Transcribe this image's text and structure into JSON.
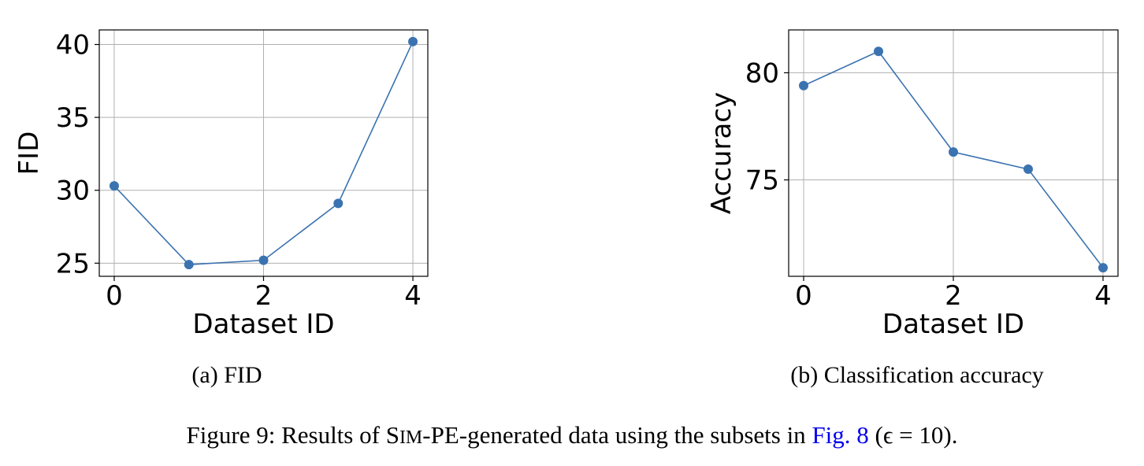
{
  "chart_data": [
    {
      "type": "line",
      "x": [
        0,
        1,
        2,
        3,
        4
      ],
      "series": [
        {
          "values": [
            30.3,
            24.9,
            25.2,
            29.1,
            40.2
          ]
        }
      ],
      "xlabel": "Dataset ID",
      "ylabel": "FID",
      "xticks": [
        "0",
        "2",
        "4"
      ],
      "yticks": [
        "25",
        "30",
        "35",
        "40"
      ],
      "xlim": [
        -0.2,
        4.2
      ],
      "ylim": [
        24.1,
        41.0
      ],
      "grid": true,
      "color": "#3b73b0",
      "subcaption": "(a) FID"
    },
    {
      "type": "line",
      "x": [
        0,
        1,
        2,
        3,
        4
      ],
      "series": [
        {
          "values": [
            79.4,
            81.0,
            76.3,
            75.5,
            70.9
          ]
        }
      ],
      "xlabel": "Dataset ID",
      "ylabel": "Accuracy",
      "xticks": [
        "0",
        "2",
        "4"
      ],
      "yticks": [
        "75",
        "80"
      ],
      "xlim": [
        -0.2,
        4.2
      ],
      "ylim": [
        70.5,
        82.0
      ],
      "grid": true,
      "color": "#3b73b0",
      "subcaption": "(b) Classification accuracy"
    }
  ],
  "caption": {
    "prefix": "Figure 9: Results of ",
    "method_first": "S",
    "method_smallcaps": "IM",
    "method_rest": "-PE-generated data using the subsets in ",
    "link_text": "Fig. 8",
    "suffix": " (ϵ = 10)."
  }
}
